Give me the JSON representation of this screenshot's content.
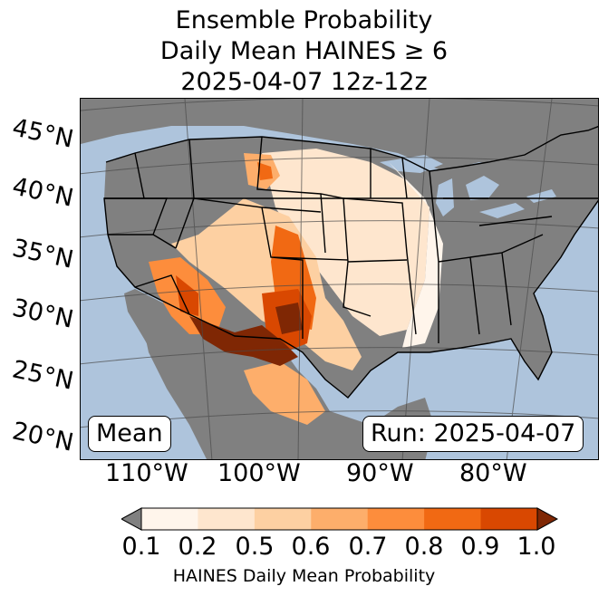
{
  "title": {
    "line1": "Ensemble Probability",
    "line2": "Daily Mean HAINES ≥ 6",
    "line3": "2025-04-07 12z-12z"
  },
  "map": {
    "lat_labels": [
      "45°N",
      "40°N",
      "35°N",
      "30°N",
      "25°N",
      "20°N"
    ],
    "lon_labels": [
      "110°W",
      "100°W",
      "90°W",
      "80°W"
    ],
    "stat_label": "Mean",
    "run_label": "Run: 2025-04-07",
    "colors": {
      "ocean": "#aec4dc",
      "land_no_data": "#808080",
      "border": "#000000",
      "graticule": "#4a4a4a"
    }
  },
  "colorbar": {
    "label": "HAINES Daily Mean Probability",
    "ticks": [
      "0.1",
      "0.2",
      "0.5",
      "0.6",
      "0.7",
      "0.8",
      "0.9",
      "1.0"
    ],
    "below_color": "#808080",
    "above_color": "#7f2704",
    "colors": [
      "#fff5eb",
      "#fee6ce",
      "#fdd0a2",
      "#fdae6b",
      "#fd8d3c",
      "#f16913",
      "#d94801"
    ]
  },
  "regions": [
    {
      "name": "great-plains-east",
      "level": 0.2
    },
    {
      "name": "texas-panhandle-oklahoma",
      "level": 0.5
    },
    {
      "name": "arizona-new-mexico",
      "level": 0.6
    },
    {
      "name": "southern-california-nevada",
      "level": 0.7
    },
    {
      "name": "new-mexico-west-texas-core",
      "level": 0.9
    },
    {
      "name": "big-bend-chihuahua-core",
      "level": 1.0
    },
    {
      "name": "northern-mexico",
      "level": 0.7
    },
    {
      "name": "colorado-front-range",
      "level": 0.6
    },
    {
      "name": "wyoming-montana-spot",
      "level": 0.5
    }
  ]
}
